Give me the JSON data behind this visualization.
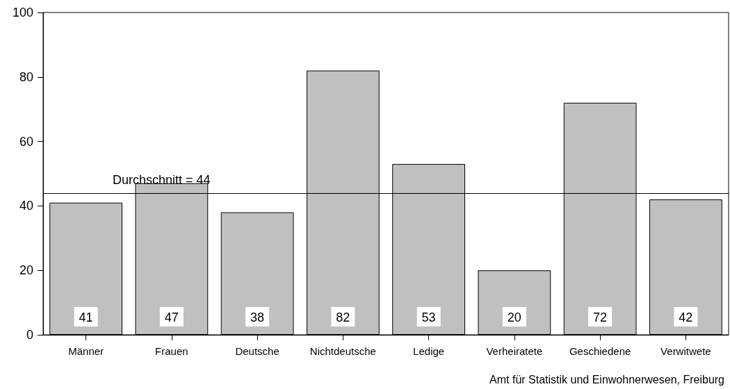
{
  "chart_data": {
    "type": "bar",
    "categories": [
      "Männer",
      "Frauen",
      "Deutsche",
      "Nichtdeutsche",
      "Ledige",
      "Verheiratete",
      "Geschiedene",
      "Verwitwete"
    ],
    "values": [
      41,
      47,
      38,
      82,
      53,
      20,
      72,
      42
    ],
    "color": "#c0c0c0",
    "data_labels": true,
    "ylim": [
      0,
      100
    ],
    "yticks": [
      0,
      20,
      40,
      60,
      80,
      100
    ],
    "grid": false,
    "ref_lines": [
      {
        "axis": "y",
        "value": 44,
        "label": "Durchschnitt = 44",
        "color": "#000000"
      }
    ],
    "annotations": [
      "Amt für Statistik und Einwohnerwesen, Freiburg"
    ]
  }
}
